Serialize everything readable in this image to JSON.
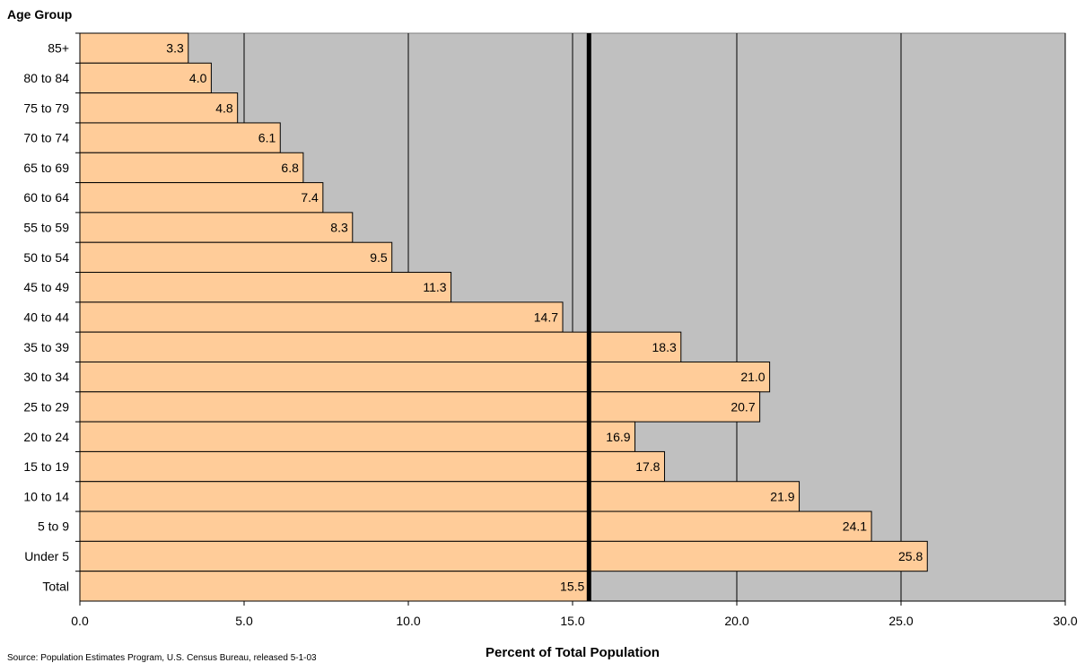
{
  "chart_data": {
    "type": "bar",
    "orientation": "horizontal",
    "title": "",
    "y_axis_title": "Age Group",
    "x_axis_title": "Percent of Total Population",
    "categories": [
      "85+",
      "80 to 84",
      "75 to 79",
      "70 to 74",
      "65 to 69",
      "60 to 64",
      "55 to 59",
      "50 to 54",
      "45 to 49",
      "40 to 44",
      "35 to 39",
      "30 to 34",
      "25 to 29",
      "20 to 24",
      "15 to 19",
      "10 to 14",
      "5 to 9",
      "Under 5",
      "Total"
    ],
    "values": [
      3.3,
      4.0,
      4.8,
      6.1,
      6.8,
      7.4,
      8.3,
      9.5,
      11.3,
      14.7,
      18.3,
      21.0,
      20.7,
      16.9,
      17.8,
      21.9,
      24.1,
      25.8,
      15.5
    ],
    "data_labels": [
      "3.3",
      "4.0",
      "4.8",
      "6.1",
      "6.8",
      "7.4",
      "8.3",
      "9.5",
      "11.3",
      "14.7",
      "18.3",
      "21.0",
      "20.7",
      "16.9",
      "17.8",
      "21.9",
      "24.1",
      "25.8",
      "15.5"
    ],
    "xlim": [
      0,
      30
    ],
    "x_ticks": [
      0,
      5,
      10,
      15,
      20,
      25,
      30
    ],
    "x_tick_labels": [
      "0.0",
      "5.0",
      "10.0",
      "15.0",
      "20.0",
      "25.0",
      "30.0"
    ],
    "reference_line": {
      "value": 15.5
    },
    "grid": "vertical",
    "legend": "none",
    "colors": {
      "bar_fill": "#ffcc99",
      "bar_stroke": "#000000",
      "plot_background": "#c0c0c0",
      "gridline": "#000000",
      "reference_line": "#000000"
    }
  },
  "footer": {
    "source": "Source: Population Estimates Program, U.S. Census Bureau, released 5-1-03"
  }
}
